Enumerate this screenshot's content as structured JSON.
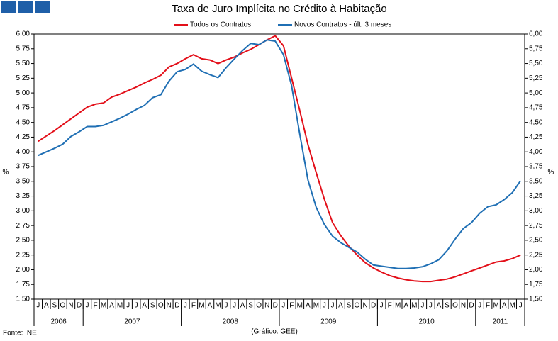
{
  "header_badges": 3,
  "chart_data": {
    "type": "line",
    "title": "Taxa de Juro Implícita no Crédito à Habitação",
    "y_label": "%",
    "y2_label": "%",
    "source": "Fonte: INE",
    "credit": "(Gráfico: GEE)",
    "categories": [
      "J",
      "A",
      "S",
      "O",
      "N",
      "D",
      "J",
      "F",
      "M",
      "A",
      "M",
      "J",
      "J",
      "A",
      "S",
      "O",
      "N",
      "D",
      "J",
      "F",
      "M",
      "A",
      "M",
      "J",
      "J",
      "A",
      "S",
      "O",
      "N",
      "D",
      "J",
      "F",
      "M",
      "A",
      "M",
      "J",
      "J",
      "A",
      "S",
      "O",
      "N",
      "D",
      "J",
      "F",
      "M",
      "A",
      "M",
      "J",
      "J",
      "A",
      "S",
      "O",
      "N",
      "D",
      "J",
      "F",
      "M",
      "A",
      "M",
      "J"
    ],
    "year_labels": [
      "2006",
      "2007",
      "2008",
      "2009",
      "2010",
      "2011"
    ],
    "series": [
      {
        "name": "Todos os Contratos",
        "color": "#e3101a",
        "values": [
          4.18,
          4.27,
          4.36,
          4.46,
          4.56,
          4.66,
          4.76,
          4.81,
          4.83,
          4.93,
          4.98,
          5.04,
          5.1,
          5.17,
          5.23,
          5.3,
          5.44,
          5.5,
          5.58,
          5.65,
          5.58,
          5.56,
          5.5,
          5.56,
          5.61,
          5.68,
          5.74,
          5.82,
          5.9,
          5.97,
          5.8,
          5.25,
          4.7,
          4.12,
          3.65,
          3.2,
          2.8,
          2.58,
          2.4,
          2.25,
          2.12,
          2.03,
          1.96,
          1.9,
          1.86,
          1.83,
          1.81,
          1.8,
          1.8,
          1.82,
          1.84,
          1.88,
          1.93,
          1.98,
          2.03,
          2.08,
          2.13,
          2.15,
          2.19,
          2.25
        ]
      },
      {
        "name": "Novos Contratos - últ. 3 meses",
        "color": "#1f6fb4",
        "values": [
          3.94,
          4.0,
          4.06,
          4.13,
          4.26,
          4.34,
          4.43,
          4.43,
          4.45,
          4.51,
          4.57,
          4.64,
          4.72,
          4.79,
          4.92,
          4.97,
          5.2,
          5.36,
          5.4,
          5.49,
          5.37,
          5.31,
          5.26,
          5.43,
          5.58,
          5.72,
          5.84,
          5.82,
          5.9,
          5.88,
          5.65,
          5.12,
          4.3,
          3.52,
          3.06,
          2.77,
          2.57,
          2.46,
          2.38,
          2.3,
          2.18,
          2.08,
          2.06,
          2.04,
          2.02,
          2.02,
          2.03,
          2.05,
          2.1,
          2.17,
          2.32,
          2.52,
          2.7,
          2.8,
          2.96,
          3.07,
          3.1,
          3.19,
          3.31,
          3.51
        ]
      }
    ],
    "ylim": [
      1.5,
      6.0
    ],
    "yticks": [
      {
        "value": 1.5,
        "label": "1,50"
      },
      {
        "value": 1.75,
        "label": "1,75"
      },
      {
        "value": 2.0,
        "label": "2,00"
      },
      {
        "value": 2.25,
        "label": "2,25"
      },
      {
        "value": 2.5,
        "label": "2,50"
      },
      {
        "value": 2.75,
        "label": "2,75"
      },
      {
        "value": 3.0,
        "label": "3,00"
      },
      {
        "value": 3.25,
        "label": "3,25"
      },
      {
        "value": 3.5,
        "label": "3,50"
      },
      {
        "value": 3.75,
        "label": "3,75"
      },
      {
        "value": 4.0,
        "label": "4,00"
      },
      {
        "value": 4.25,
        "label": "4,25"
      },
      {
        "value": 4.5,
        "label": "4,50"
      },
      {
        "value": 4.75,
        "label": "4,75"
      },
      {
        "value": 5.0,
        "label": "5,00"
      },
      {
        "value": 5.25,
        "label": "5,25"
      },
      {
        "value": 5.5,
        "label": "5,50"
      },
      {
        "value": 5.75,
        "label": "5,75"
      },
      {
        "value": 6.0,
        "label": "6,00"
      }
    ],
    "y2lim": [
      1.5,
      6.0
    ],
    "grid": false
  }
}
